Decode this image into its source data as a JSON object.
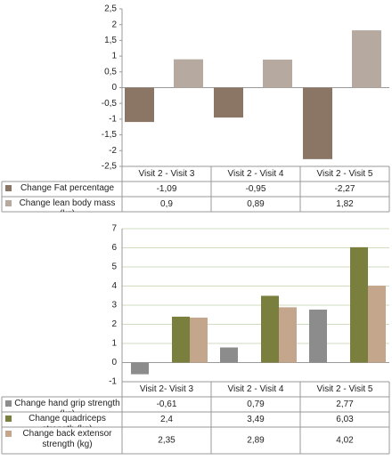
{
  "chart_data": [
    {
      "type": "bar",
      "categories": [
        "Visit 2 - Visit 3",
        "Visit 2 - Visit 4",
        "Visit 2 - Visit 5"
      ],
      "series": [
        {
          "name": "Change Fat percentage",
          "color": "#8b7565",
          "values": [
            -1.09,
            -0.95,
            -2.27
          ],
          "value_labels": [
            "-1,09",
            "-0,95",
            "-2,27"
          ]
        },
        {
          "name": "Change lean body mass (kg)",
          "color": "#b6a99f",
          "values": [
            0.9,
            0.89,
            1.82
          ],
          "value_labels": [
            "0,9",
            "0,89",
            "1,82"
          ]
        }
      ],
      "ylim": [
        -2.5,
        2.5
      ],
      "yticks": [
        {
          "value": 2.5,
          "label": "2,5"
        },
        2,
        {
          "value": 1.5,
          "label": "1,5"
        },
        1,
        {
          "value": 0.5,
          "label": "0,5"
        },
        0,
        {
          "value": -0.5,
          "label": "-0,5"
        },
        -1,
        {
          "value": -1.5,
          "label": "-1,5"
        },
        -2,
        {
          "value": -2.5,
          "label": "-2,5"
        }
      ],
      "grid": false
    },
    {
      "type": "bar",
      "categories": [
        "Visit 2- Visit 3",
        "Visit 2 - Visit 4",
        "Visit 2 - Visit 5"
      ],
      "series": [
        {
          "name": "Change hand grip strength (kg)",
          "color": "#8c8c8c",
          "values": [
            -0.61,
            0.79,
            2.77
          ],
          "value_labels": [
            "-0,61",
            "0,79",
            "2,77"
          ]
        },
        {
          "name": "Change quadriceps strength (kg)",
          "color": "#7a7f3d",
          "values": [
            2.4,
            3.49,
            6.03
          ],
          "value_labels": [
            "2,4",
            "3,49",
            "6,03"
          ]
        },
        {
          "name": "Change back extensor strength (kg)",
          "color": "#c4a68c",
          "values": [
            2.35,
            2.89,
            4.02
          ],
          "value_labels": [
            "2,35",
            "2,89",
            "4,02"
          ]
        }
      ],
      "ylim": [
        -1,
        7
      ],
      "yticks": [
        7,
        6,
        5,
        4,
        3,
        2,
        1,
        0,
        -1
      ],
      "grid": true
    }
  ]
}
